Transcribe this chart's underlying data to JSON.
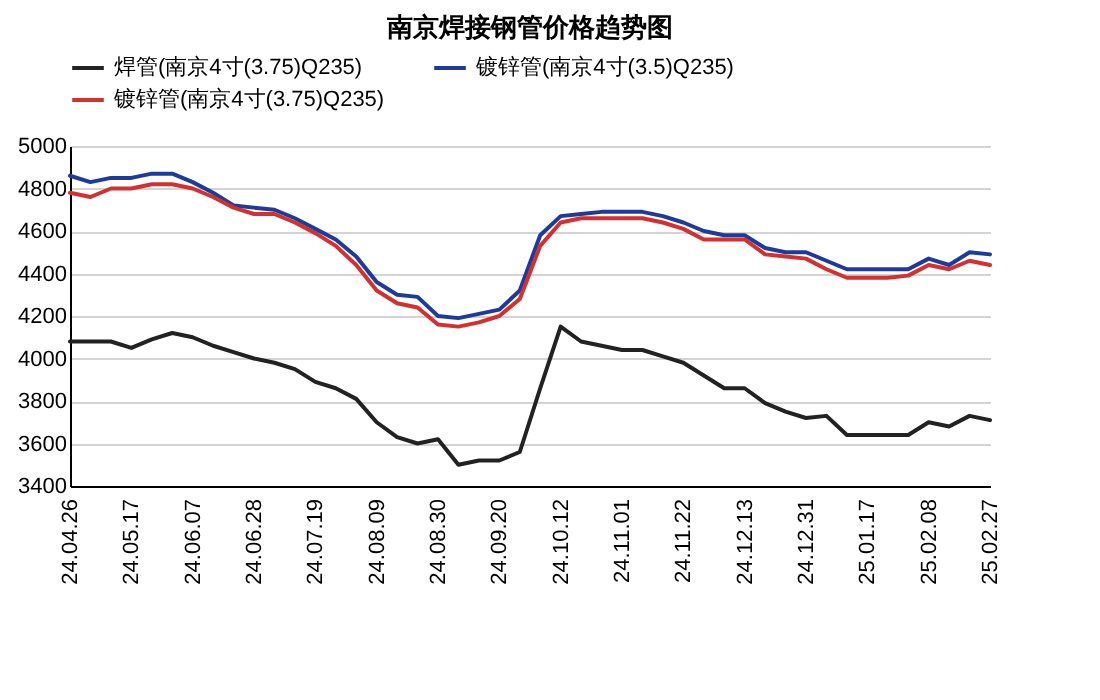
{
  "chart_data": {
    "type": "line",
    "title": "南京焊接钢管价格趋势图",
    "categories": [
      "24.04.26",
      null,
      null,
      "24.05.17",
      null,
      null,
      "24.06.07",
      null,
      null,
      "24.06.28",
      null,
      null,
      "24.07.19",
      null,
      null,
      "24.08.09",
      null,
      null,
      "24.08.30",
      null,
      null,
      "24.09.20",
      null,
      null,
      "24.10.12",
      null,
      null,
      "24.11.01",
      null,
      null,
      "24.11.22",
      null,
      null,
      "24.12.13",
      null,
      null,
      "24.12.31",
      null,
      null,
      "25.01.17",
      null,
      null,
      "25.02.08",
      null,
      null,
      "25.02.27"
    ],
    "series": [
      {
        "name": "焊管(南京4寸(3.75)Q235)",
        "color": "#222222",
        "values": [
          4080,
          4080,
          4080,
          4050,
          4090,
          4120,
          4100,
          4060,
          4030,
          4000,
          3980,
          3950,
          3890,
          3860,
          3810,
          3700,
          3630,
          3600,
          3620,
          3500,
          3520,
          3520,
          3560,
          3860,
          4150,
          4080,
          4060,
          4040,
          4040,
          4010,
          3980,
          3920,
          3860,
          3860,
          3790,
          3750,
          3720,
          3730,
          3640,
          3640,
          3640,
          3640,
          3700,
          3680,
          3730,
          3710
        ]
      },
      {
        "name": "镀锌管(南京4寸(3.5)Q235)",
        "color": "#1c3c9c",
        "values": [
          4860,
          4830,
          4850,
          4850,
          4870,
          4870,
          4830,
          4780,
          4720,
          4710,
          4700,
          4660,
          4610,
          4560,
          4480,
          4360,
          4300,
          4290,
          4200,
          4190,
          4210,
          4230,
          4320,
          4580,
          4670,
          4680,
          4690,
          4690,
          4690,
          4670,
          4640,
          4600,
          4580,
          4580,
          4520,
          4500,
          4500,
          4460,
          4420,
          4420,
          4420,
          4420,
          4470,
          4440,
          4500,
          4490
        ]
      },
      {
        "name": "镀锌管(南京4寸(3.75)Q235)",
        "color": "#d43030",
        "values": [
          4780,
          4760,
          4800,
          4800,
          4820,
          4820,
          4800,
          4760,
          4710,
          4680,
          4680,
          4640,
          4590,
          4530,
          4440,
          4320,
          4260,
          4240,
          4160,
          4150,
          4170,
          4200,
          4280,
          4530,
          4640,
          4660,
          4660,
          4660,
          4660,
          4640,
          4610,
          4560,
          4560,
          4560,
          4490,
          4480,
          4470,
          4420,
          4380,
          4380,
          4380,
          4390,
          4440,
          4420,
          4460,
          4440
        ]
      }
    ],
    "ylim": [
      3400,
      5000
    ],
    "yticks": [
      3400,
      3600,
      3800,
      4000,
      4200,
      4400,
      4600,
      4800,
      5000
    ],
    "grid": "y",
    "legend": "top",
    "marker": "none",
    "line_style": "solid"
  }
}
